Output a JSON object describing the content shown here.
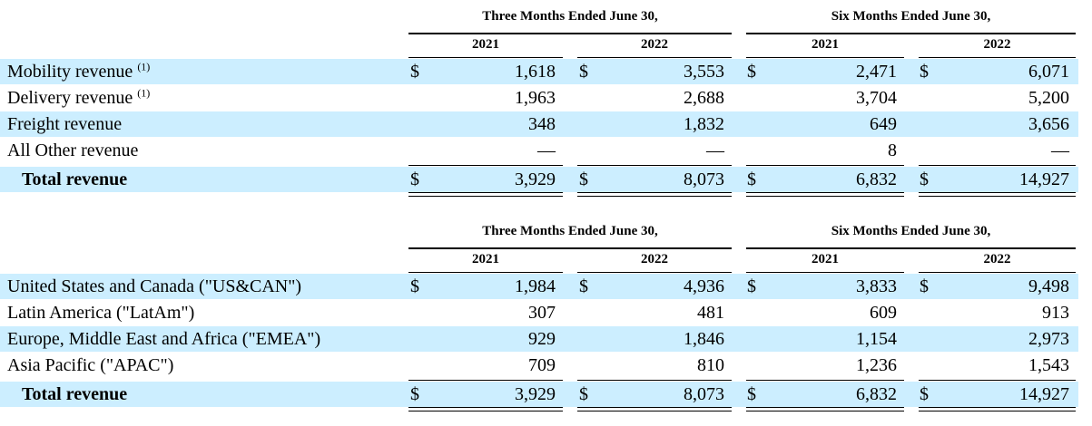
{
  "tables": [
    {
      "header_three": "Three Months Ended June 30,",
      "header_six": "Six Months Ended June 30,",
      "years": [
        "2021",
        "2022",
        "2021",
        "2022"
      ],
      "rows": [
        {
          "label": "Mobility revenue ",
          "note": "(1)",
          "cur": true,
          "values": [
            "1,618",
            "3,553",
            "2,471",
            "6,071"
          ],
          "shaded": true
        },
        {
          "label": "Delivery revenue ",
          "note": "(1)",
          "cur": false,
          "values": [
            "1,963",
            "2,688",
            "3,704",
            "5,200"
          ],
          "shaded": false
        },
        {
          "label": "Freight revenue",
          "note": "",
          "cur": false,
          "values": [
            "348",
            "1,832",
            "649",
            "3,656"
          ],
          "shaded": true
        },
        {
          "label": "All Other revenue",
          "note": "",
          "cur": false,
          "values": [
            "—",
            "—",
            "8",
            "—"
          ],
          "shaded": false
        }
      ],
      "total": {
        "label": "Total revenue",
        "values": [
          "3,929",
          "8,073",
          "6,832",
          "14,927"
        ]
      }
    },
    {
      "header_three": "Three Months Ended June 30,",
      "header_six": "Six Months Ended June 30,",
      "years": [
        "2021",
        "2022",
        "2021",
        "2022"
      ],
      "rows": [
        {
          "label": "United States and Canada (\"US&CAN\")",
          "note": "",
          "cur": true,
          "values": [
            "1,984",
            "4,936",
            "3,833",
            "9,498"
          ],
          "shaded": true
        },
        {
          "label": "Latin America (\"LatAm\")",
          "note": "",
          "cur": false,
          "values": [
            "307",
            "481",
            "609",
            "913"
          ],
          "shaded": false
        },
        {
          "label": "Europe, Middle East and Africa (\"EMEA\")",
          "note": "",
          "cur": false,
          "values": [
            "929",
            "1,846",
            "1,154",
            "2,973"
          ],
          "shaded": true
        },
        {
          "label": "Asia Pacific (\"APAC\")",
          "note": "",
          "cur": false,
          "values": [
            "709",
            "810",
            "1,236",
            "1,543"
          ],
          "shaded": false
        }
      ],
      "total": {
        "label": "Total revenue",
        "values": [
          "3,929",
          "8,073",
          "6,832",
          "14,927"
        ]
      }
    }
  ],
  "currency_symbol": "$"
}
